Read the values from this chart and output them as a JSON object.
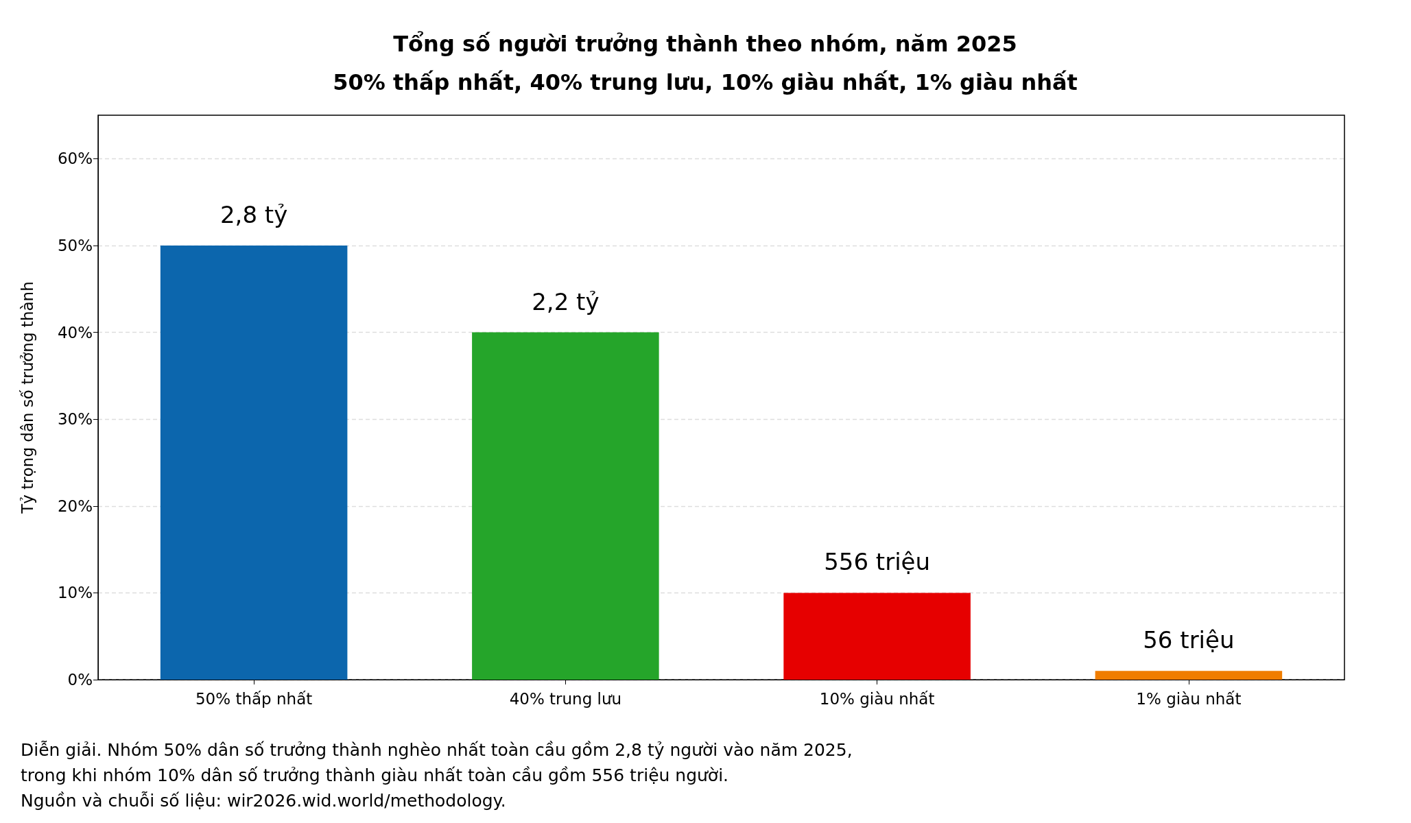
{
  "chart_data": {
    "type": "bar",
    "title": "Tổng số người trưởng thành theo nhóm, năm 2025\n50% thấp nhất, 40% trung lưu, 10% giàu nhất, 1% giàu nhất",
    "ylabel": "Tỷ trọng dân số trưởng thành",
    "categories": [
      "50% thấp nhất",
      "40% trung lưu",
      "10% giàu nhất",
      "1% giàu nhất"
    ],
    "values": [
      50,
      40,
      10,
      1
    ],
    "colors": [
      "#0c66ad",
      "#25a52a",
      "#e60000",
      "#f07d00"
    ],
    "ylim": [
      0,
      65
    ],
    "yticks": [
      {
        "value": 0,
        "label": "0%"
      },
      {
        "value": 10,
        "label": "10%"
      },
      {
        "value": 20,
        "label": "20%"
      },
      {
        "value": 30,
        "label": "30%"
      },
      {
        "value": 40,
        "label": "40%"
      },
      {
        "value": 50,
        "label": "50%"
      },
      {
        "value": 60,
        "label": "60%"
      }
    ],
    "grid": "y",
    "annotations": [
      {
        "text": "2,8 tỷ",
        "x": "50% thấp nhất",
        "y": 50
      },
      {
        "text": "2,2 tỷ",
        "x": "40% trung lưu",
        "y": 40
      },
      {
        "text": "556 triệu",
        "x": "10% giàu nhất",
        "y": 10
      },
      {
        "text": "56 triệu",
        "x": "1% giàu nhất",
        "y": 1
      },
      "Diễn giải. Nhóm 50% dân số trưởng thành nghèo nhất toàn cầu gồm 2,8 tỷ người vào năm 2025,\ntrong khi nhóm 10% dân số trưởng thành giàu nhất toàn cầu gồm 556 triệu người.\nNguồn và chuỗi số liệu: wir2026.wid.world/methodology."
    ]
  }
}
